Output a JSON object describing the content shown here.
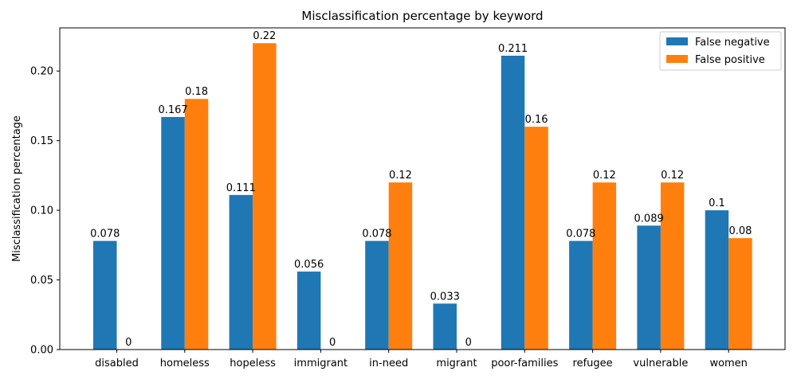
{
  "chart_data": {
    "type": "bar",
    "title": "Misclassification percentage by keyword",
    "xlabel": "",
    "ylabel": "Misclassification percentage",
    "categories": [
      "disabled",
      "homeless",
      "hopeless",
      "immigrant",
      "in-need",
      "migrant",
      "poor-families",
      "refugee",
      "vulnerable",
      "women"
    ],
    "series": [
      {
        "name": "False negative",
        "color": "#1f77b4",
        "values": [
          0.078,
          0.167,
          0.111,
          0.056,
          0.078,
          0.033,
          0.211,
          0.078,
          0.089,
          0.1
        ],
        "labels": [
          "0.078",
          "0.167",
          "0.111",
          "0.056",
          "0.078",
          "0.033",
          "0.211",
          "0.078",
          "0.089",
          "0.1"
        ]
      },
      {
        "name": "False positive",
        "color": "#ff7f0e",
        "values": [
          0,
          0.18,
          0.22,
          0,
          0.12,
          0,
          0.16,
          0.12,
          0.12,
          0.08
        ],
        "labels": [
          "0",
          "0.18",
          "0.22",
          "0",
          "0.12",
          "0",
          "0.16",
          "0.12",
          "0.12",
          "0.08"
        ]
      }
    ],
    "ylim": [
      0,
      0.231
    ],
    "yticks": [
      0.0,
      0.05,
      0.1,
      0.15,
      0.2
    ],
    "ytick_labels": [
      "0.00",
      "0.05",
      "0.10",
      "0.15",
      "0.20"
    ],
    "grid": false,
    "legend_position": "top-right"
  }
}
